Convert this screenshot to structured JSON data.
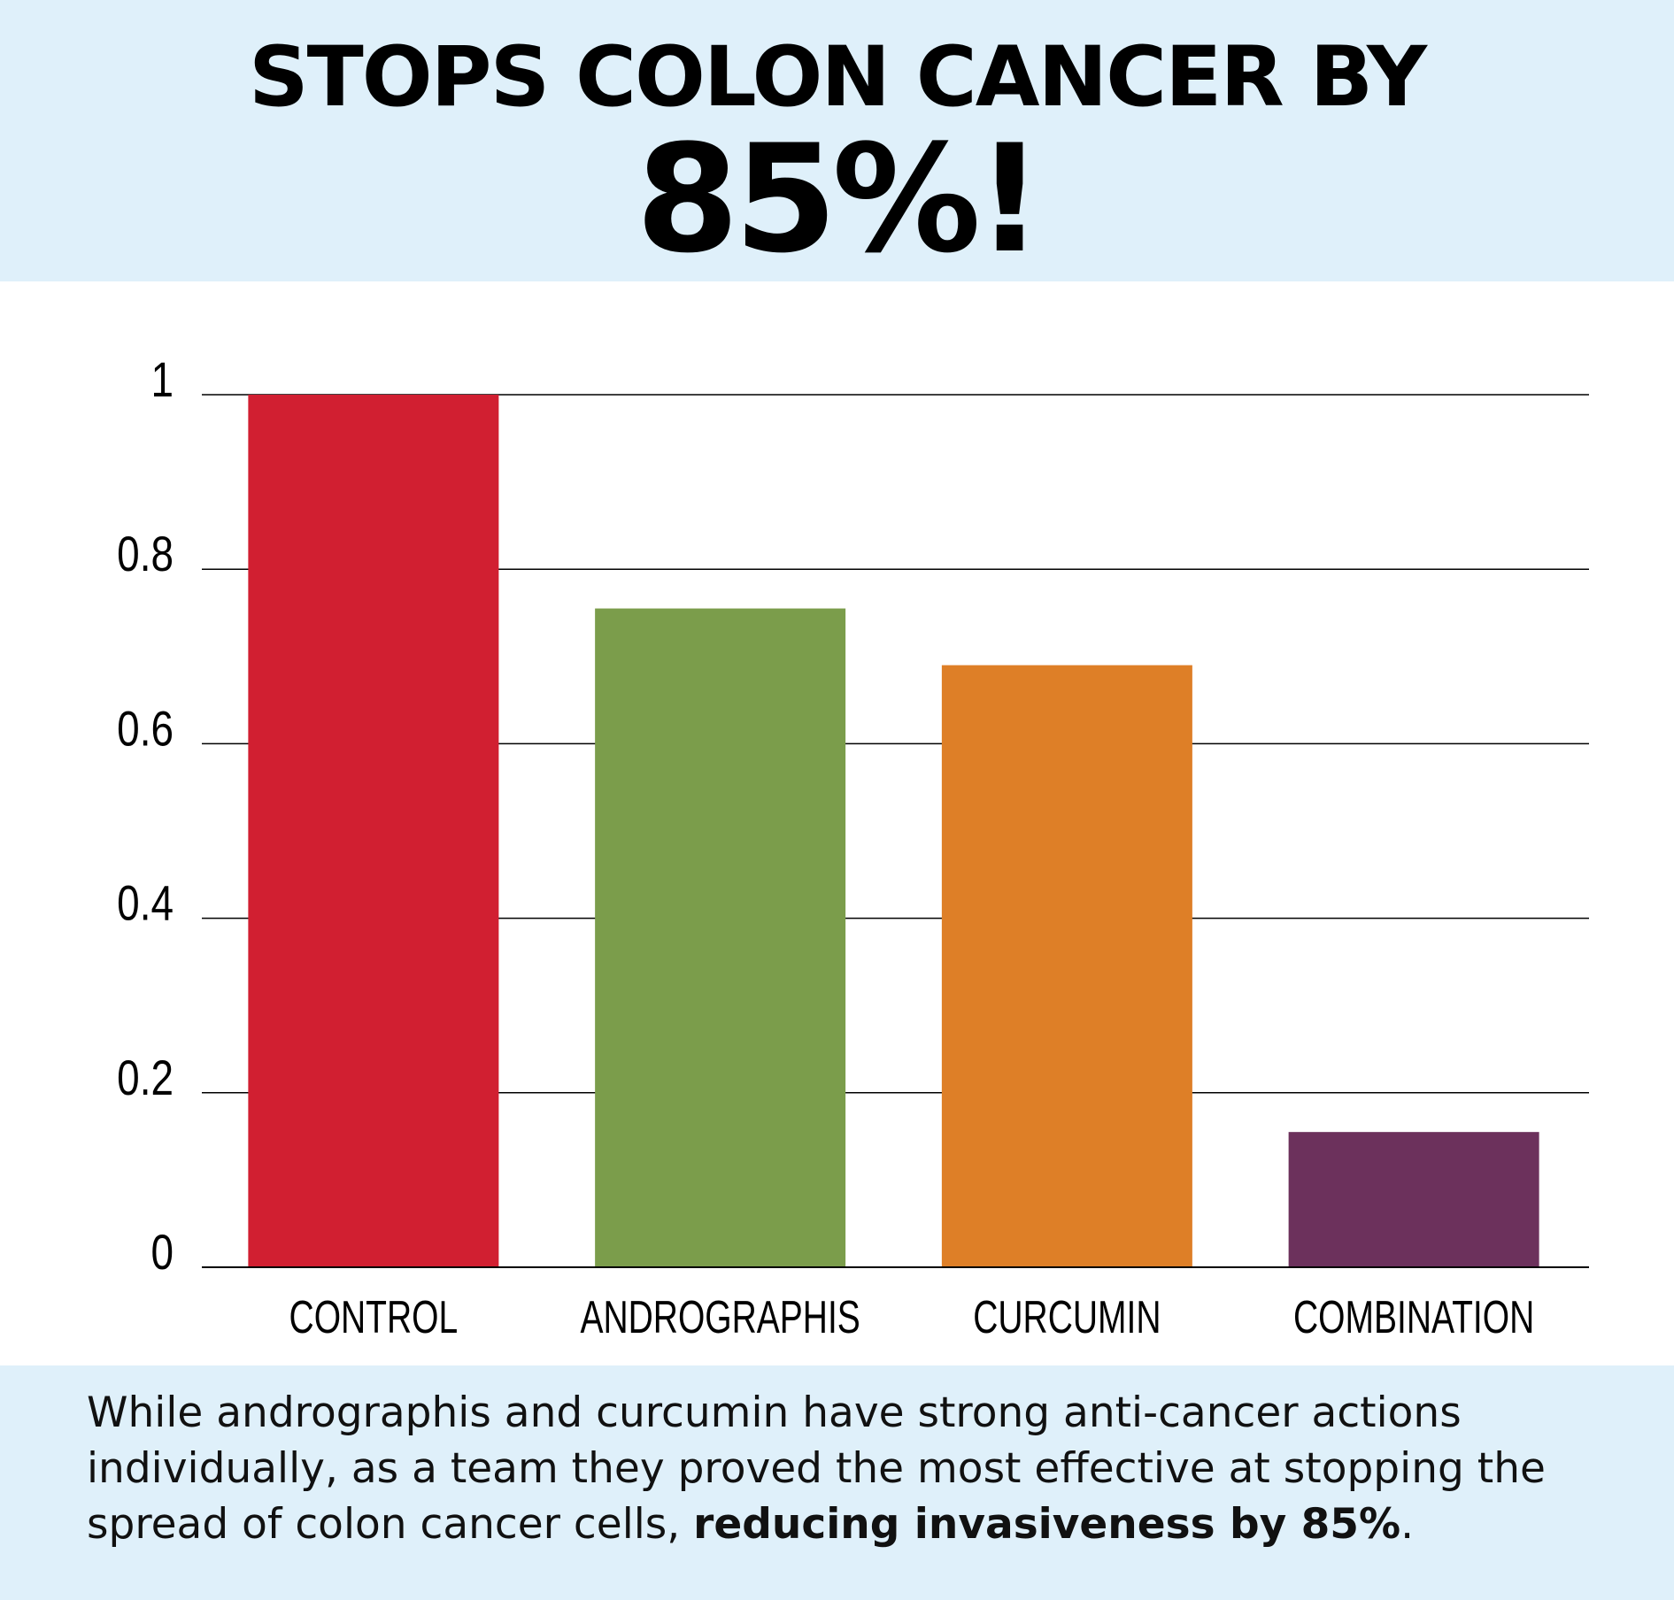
{
  "header": {
    "title_line1": "STOPS COLON CANCER BY",
    "title_line2": "85%!"
  },
  "chart_data": {
    "type": "bar",
    "categories": [
      "CONTROL",
      "ANDROGRAPHIS",
      "CURCUMIN",
      "COMBINATION"
    ],
    "values": [
      1.0,
      0.755,
      0.69,
      0.155
    ],
    "colors": [
      "#d11f31",
      "#7b9d4b",
      "#de7f27",
      "#6c315c"
    ],
    "title": "",
    "xlabel": "",
    "ylabel": "",
    "ylim": [
      0,
      1
    ],
    "yticks": [
      0,
      0.2,
      0.4,
      0.6,
      0.8,
      1
    ],
    "ytick_labels": [
      "0",
      "0.2",
      "0.4",
      "0.6",
      "0.8",
      "1"
    ],
    "grid": true,
    "legend": "none"
  },
  "caption": {
    "text": "While andrographis and curcumin have strong anti-cancer actions individually, as a team they proved the most effective at stopping the spread of colon cancer cells, ",
    "bold_text": "reducing invasiveness by 85%",
    "end": "."
  }
}
